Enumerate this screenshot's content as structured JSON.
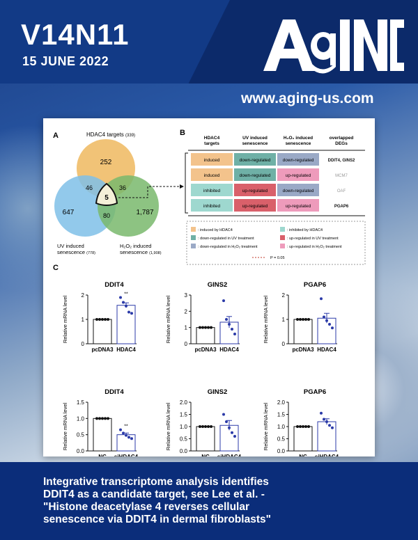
{
  "cover": {
    "volume": "V14N11",
    "date": "15 JUNE 2022",
    "journal_logo": "AGING",
    "url": "www.aging-us.com",
    "caption_lines": [
      "Integrative transcriptome analysis identifies",
      "DDIT4 as a candidate target, see Lee et al. -",
      "\"Histone deacetylase 4 reverses cellular",
      "senescence via DDIT4 in dermal fibroblasts\""
    ]
  },
  "panel_a": {
    "label": "A",
    "set_top": "HDAC4 targets",
    "set_top_count": "(339)",
    "set_left_line1": "UV induced",
    "set_left_line2": "senescence",
    "set_left_count": "(778)",
    "set_right_line1": "H₂O₂ induced",
    "set_right_line2": "senescence",
    "set_right_count": "(1,908)",
    "n_top": "252",
    "n_left": "647",
    "n_right": "1,787",
    "n_top_left": "46",
    "n_top_right": "36",
    "n_left_right": "80",
    "n_center": "5",
    "colors": {
      "top": "#f0c070",
      "left": "#7fbfe8",
      "right": "#79b96c"
    }
  },
  "panel_b": {
    "label": "B",
    "headers": [
      "HDAC4 targets",
      "UV induced senescence",
      "H₂O₂ induced senescence",
      "overlapped DEGs"
    ],
    "rows": [
      {
        "c1": "induced",
        "c2": "down-regulated",
        "c3": "down-regulated",
        "gene": "DDIT4, GINS2",
        "bold": true
      },
      {
        "c1": "induced",
        "c2": "down-regulated",
        "c3": "up-regulated",
        "gene": "MCM7",
        "bold": false
      },
      {
        "c1": "inhibited",
        "c2": "up-regulated",
        "c3": "down-regulated",
        "gene": "OAF",
        "bold": false
      },
      {
        "c1": "inhibited",
        "c2": "up-regulated",
        "c3": "up-regulated",
        "gene": "PGAP6",
        "bold": true
      }
    ],
    "legend": [
      ": induced by HDAC4",
      ": inhibited by HDAC4",
      ": down-regulated in UV treatment",
      ": up-regulated in UV treatment",
      ": down-regulated in H₂O₂ treatment",
      ": up-regulated in H₂O₂ treatment"
    ],
    "pvalue_label": "P = 0.05",
    "colors": {
      "induced": "#f3c38c",
      "inhibited": "#9ed8cf",
      "down_uv": "#6fb0a6",
      "up_uv": "#d9606a",
      "down_h2o2": "#9aa9c6",
      "up_h2o2": "#ee9bbb"
    }
  },
  "panel_c": {
    "label": "C",
    "ylabel": "Relative mRNA level",
    "significance": "**"
  },
  "chart_data": [
    {
      "type": "bar",
      "title": "DDIT4",
      "categories": [
        "pcDNA3",
        "HDAC4"
      ],
      "values": [
        1.0,
        1.58
      ],
      "errors": [
        0,
        0.1
      ],
      "ylim": [
        0,
        2
      ],
      "yticks": [
        0,
        1,
        2
      ],
      "points": [
        [
          1,
          1,
          1,
          1,
          1
        ],
        [
          1.9,
          1.7,
          1.55,
          1.3,
          1.25
        ]
      ],
      "sig": [
        false,
        true
      ]
    },
    {
      "type": "bar",
      "title": "GINS2",
      "categories": [
        "pcDNA3",
        "HDAC4"
      ],
      "values": [
        1.0,
        1.33
      ],
      "errors": [
        0,
        0.35
      ],
      "ylim": [
        0,
        3
      ],
      "yticks": [
        0,
        1,
        2,
        3
      ],
      "points": [
        [
          1,
          1,
          1,
          1,
          1
        ],
        [
          2.65,
          1.5,
          1.2,
          0.9,
          0.6
        ]
      ],
      "sig": [
        false,
        false
      ]
    },
    {
      "type": "bar",
      "title": "PGAP6",
      "categories": [
        "pcDNA3",
        "HDAC4"
      ],
      "values": [
        1.0,
        1.05
      ],
      "errors": [
        0,
        0.2
      ],
      "ylim": [
        0,
        2
      ],
      "yticks": [
        0,
        1,
        2
      ],
      "points": [
        [
          1,
          1,
          1,
          1,
          1
        ],
        [
          1.85,
          1.1,
          0.95,
          0.8,
          0.65
        ]
      ],
      "sig": [
        false,
        false
      ]
    },
    {
      "type": "bar",
      "title": "DDIT4",
      "categories": [
        "NC",
        "siHDAC4"
      ],
      "values": [
        1.0,
        0.5
      ],
      "errors": [
        0,
        0.05
      ],
      "ylim": [
        0,
        1.5
      ],
      "yticks": [
        0,
        0.5,
        1.0,
        1.5
      ],
      "points": [
        [
          1,
          1,
          1,
          1,
          1
        ],
        [
          0.65,
          0.55,
          0.48,
          0.42,
          0.38
        ]
      ],
      "sig": [
        false,
        true
      ]
    },
    {
      "type": "bar",
      "title": "GINS2",
      "categories": [
        "NC",
        "siHDAC4"
      ],
      "values": [
        1.0,
        1.05
      ],
      "errors": [
        0,
        0.2
      ],
      "ylim": [
        0,
        2.0
      ],
      "yticks": [
        0,
        0.5,
        1.0,
        1.5,
        2.0
      ],
      "points": [
        [
          1,
          1,
          1,
          1,
          1
        ],
        [
          1.5,
          1.2,
          0.95,
          0.75,
          0.6
        ]
      ],
      "sig": [
        false,
        false
      ]
    },
    {
      "type": "bar",
      "title": "PGAP6",
      "categories": [
        "NC",
        "siHDAC4"
      ],
      "values": [
        1.0,
        1.2
      ],
      "errors": [
        0,
        0.12
      ],
      "ylim": [
        0,
        2.0
      ],
      "yticks": [
        0,
        0.5,
        1.0,
        1.5,
        2.0
      ],
      "points": [
        [
          1,
          1,
          1,
          1,
          1
        ],
        [
          1.55,
          1.3,
          1.2,
          1.05,
          0.95
        ]
      ],
      "sig": [
        false,
        false
      ]
    }
  ]
}
